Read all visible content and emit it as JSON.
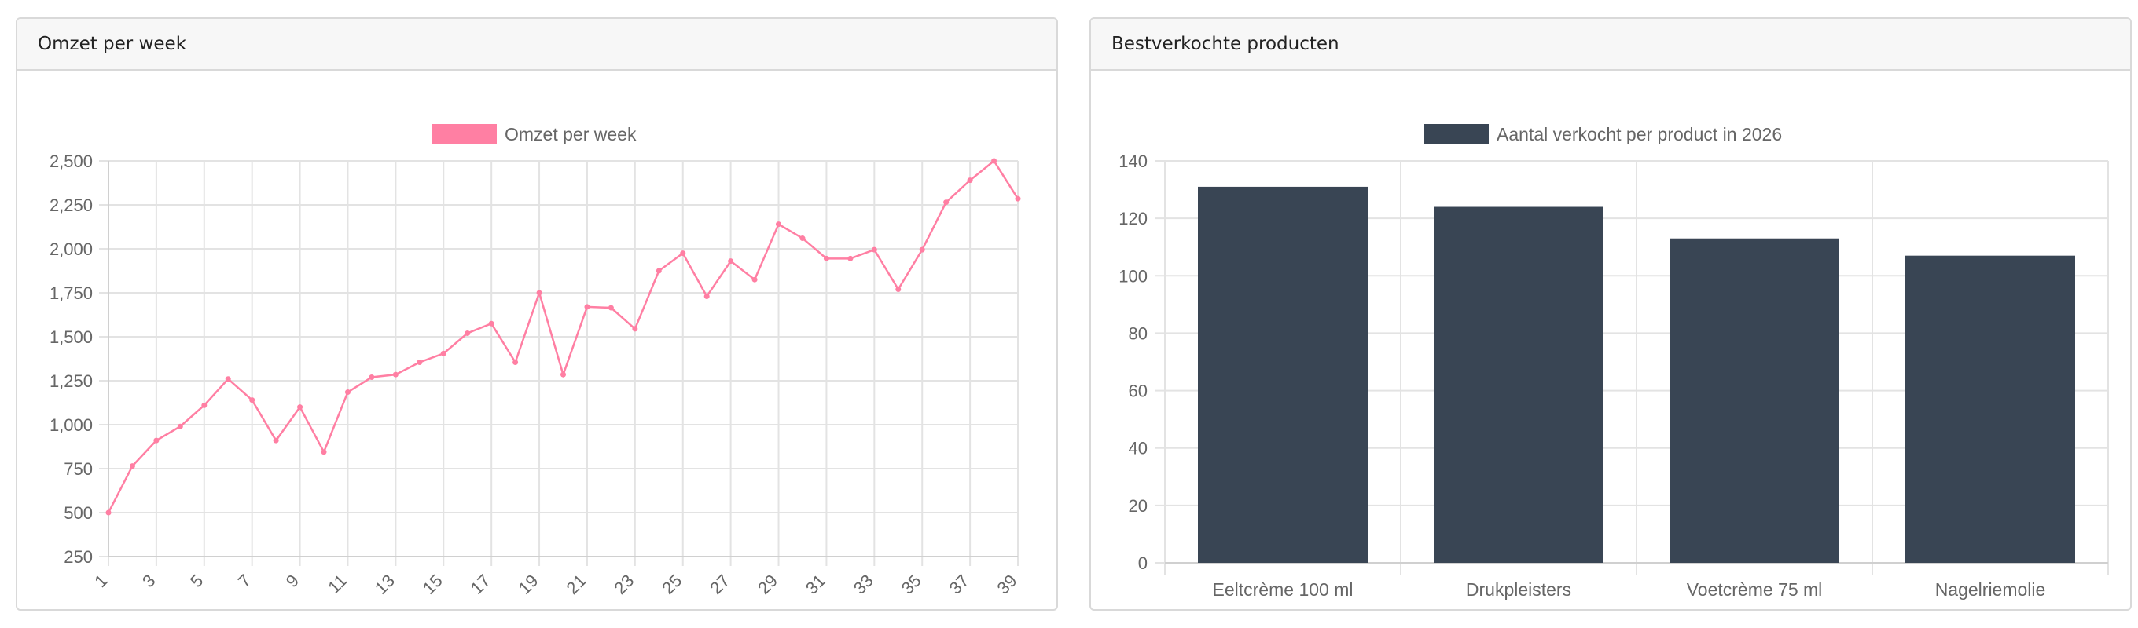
{
  "panels": {
    "left": {
      "title": "Omzet per week"
    },
    "right": {
      "title": "Bestverkochte producten"
    }
  },
  "colors": {
    "line": "#ff7fa3",
    "bar": "#394554",
    "grid": "#e3e3e3",
    "axis_text": "#666666"
  },
  "chart_data": [
    {
      "type": "line",
      "title": "",
      "legend": {
        "position": "top",
        "label": "Omzet per week"
      },
      "x": [
        1,
        2,
        3,
        4,
        5,
        6,
        7,
        8,
        9,
        10,
        11,
        12,
        13,
        14,
        15,
        16,
        17,
        18,
        19,
        20,
        21,
        22,
        23,
        24,
        25,
        26,
        27,
        28,
        29,
        30,
        31,
        32,
        33,
        34,
        35,
        36,
        37,
        38,
        39
      ],
      "x_tick_labels": [
        "1",
        "3",
        "5",
        "7",
        "9",
        "11",
        "13",
        "15",
        "17",
        "19",
        "21",
        "23",
        "25",
        "27",
        "29",
        "31",
        "33",
        "35",
        "37",
        "39"
      ],
      "series": [
        {
          "name": "Omzet per week",
          "values": [
            500,
            765,
            910,
            990,
            1110,
            1260,
            1140,
            910,
            1100,
            845,
            1185,
            1270,
            1285,
            1355,
            1405,
            1520,
            1575,
            1355,
            1750,
            1285,
            1670,
            1665,
            1545,
            1875,
            1975,
            1730,
            1930,
            1825,
            2140,
            2060,
            1945,
            1945,
            1995,
            1770,
            1995,
            2265,
            2390,
            2500,
            2285
          ]
        }
      ],
      "ylim": [
        250,
        2500
      ],
      "y_ticks": [
        250,
        500,
        750,
        1000,
        1250,
        1500,
        1750,
        2000,
        2250,
        2500
      ],
      "y_tick_labels": [
        "250",
        "500",
        "750",
        "1,000",
        "1,250",
        "1,500",
        "1,750",
        "2,000",
        "2,250",
        "2,500"
      ],
      "grid": true
    },
    {
      "type": "bar",
      "title": "",
      "legend": {
        "position": "top",
        "label": "Aantal verkocht per product in 2026"
      },
      "categories": [
        "Eeltcrème 100 ml",
        "Drukpleisters",
        "Voetcrème 75 ml",
        "Nagelriemolie"
      ],
      "series": [
        {
          "name": "Aantal verkocht per product in 2026",
          "values": [
            131,
            124,
            113,
            107
          ]
        }
      ],
      "ylim": [
        0,
        140
      ],
      "y_ticks": [
        0,
        20,
        40,
        60,
        80,
        100,
        120,
        140
      ],
      "y_tick_labels": [
        "0",
        "20",
        "40",
        "60",
        "80",
        "100",
        "120",
        "140"
      ],
      "grid": true
    }
  ]
}
